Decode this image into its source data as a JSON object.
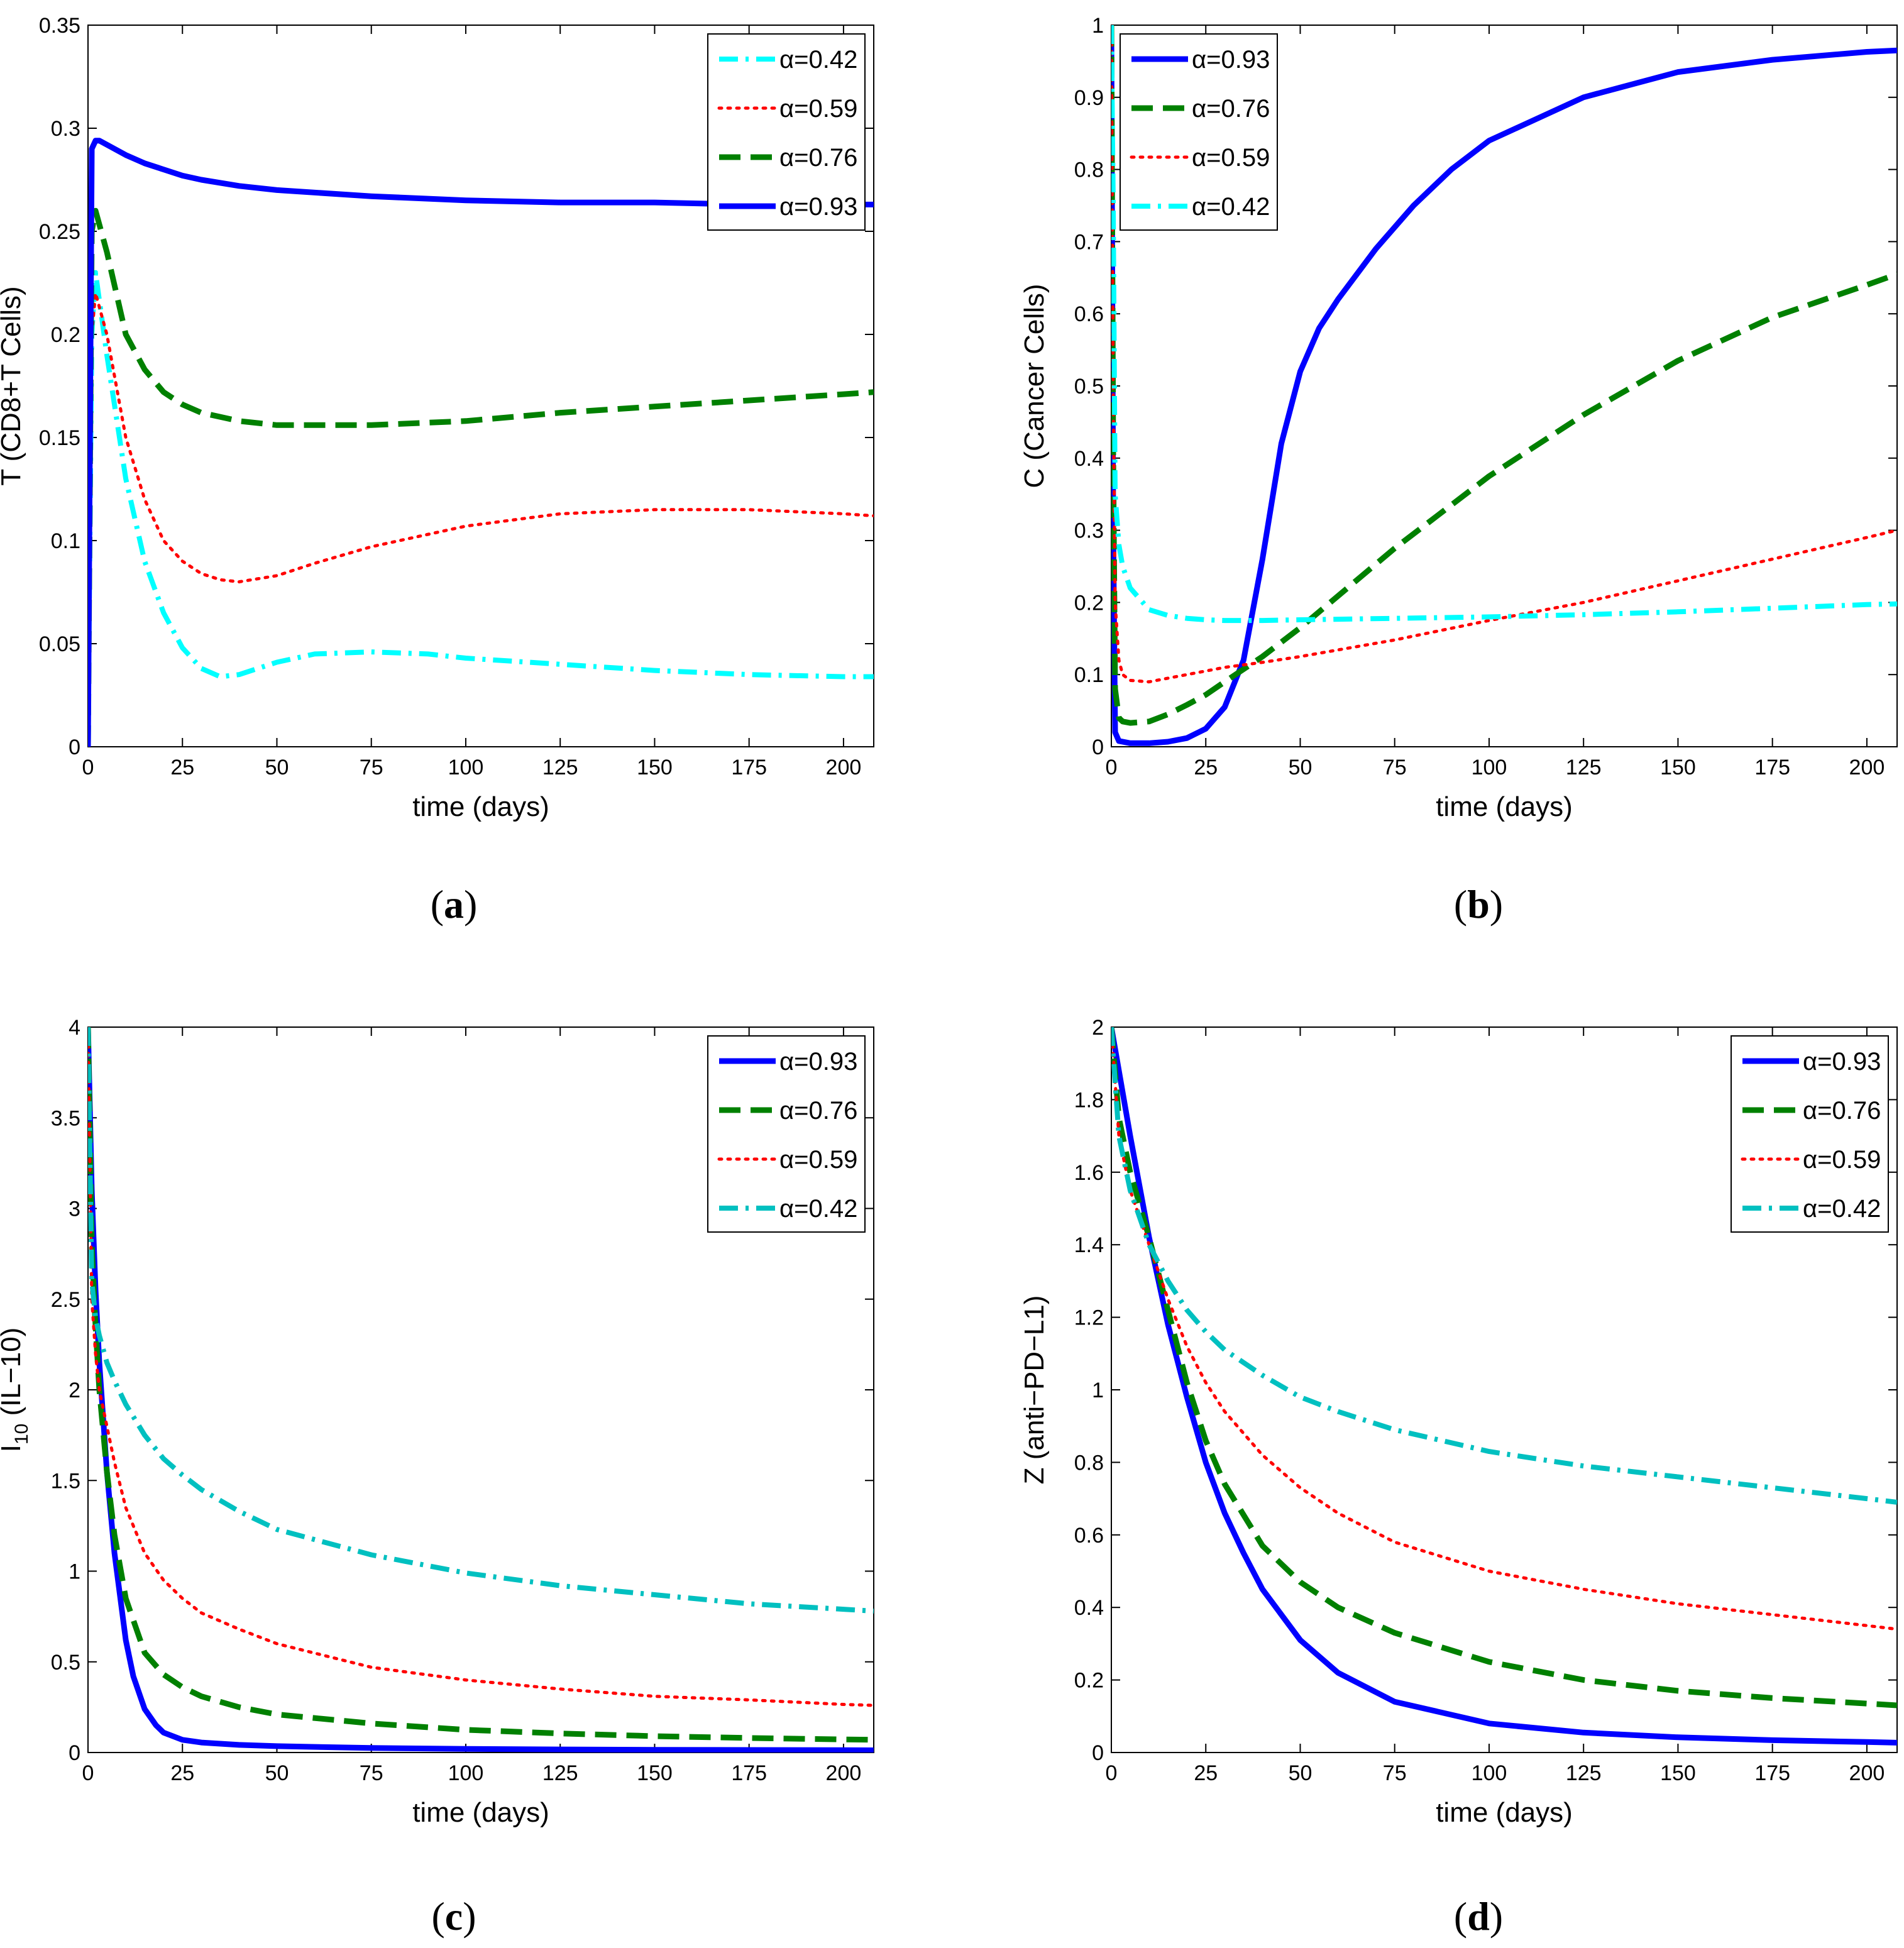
{
  "chart_data": [
    {
      "panel": "a",
      "type": "line",
      "caption": "(a)",
      "ylabel": "T (CD8+T Cells)",
      "xlabel": "time (days)",
      "xlim": [
        0,
        208
      ],
      "ylim": [
        0,
        0.35
      ],
      "xticks": [
        "0",
        "25",
        "50",
        "75",
        "100",
        "125",
        "150",
        "175",
        "200"
      ],
      "yticks": [
        "0",
        "0.05",
        "0.1",
        "0.15",
        "0.2",
        "0.25",
        "0.3",
        "0.35"
      ],
      "legend_position": "top-right",
      "series": [
        {
          "name": "α=0.42",
          "color": "#00ffff",
          "style": "dashdot",
          "x": [
            0,
            1,
            2,
            5,
            10,
            15,
            20,
            25,
            30,
            35,
            40,
            50,
            60,
            75,
            90,
            100,
            125,
            150,
            175,
            200,
            208
          ],
          "y": [
            0,
            0.2,
            0.23,
            0.19,
            0.13,
            0.09,
            0.065,
            0.048,
            0.038,
            0.034,
            0.035,
            0.041,
            0.045,
            0.046,
            0.045,
            0.043,
            0.04,
            0.037,
            0.035,
            0.034,
            0.034
          ]
        },
        {
          "name": "α=0.59",
          "color": "#ff0000",
          "style": "dotted",
          "x": [
            0,
            1,
            2,
            5,
            10,
            15,
            20,
            25,
            30,
            35,
            40,
            50,
            60,
            75,
            100,
            125,
            150,
            175,
            200,
            208
          ],
          "y": [
            0,
            0.2,
            0.22,
            0.2,
            0.15,
            0.12,
            0.1,
            0.09,
            0.084,
            0.081,
            0.08,
            0.083,
            0.089,
            0.097,
            0.107,
            0.113,
            0.115,
            0.115,
            0.113,
            0.112
          ]
        },
        {
          "name": "α=0.76",
          "color": "#008000",
          "style": "dashed",
          "x": [
            0,
            1,
            2,
            5,
            10,
            15,
            20,
            25,
            30,
            40,
            50,
            60,
            75,
            100,
            125,
            150,
            175,
            200,
            208
          ],
          "y": [
            0,
            0.25,
            0.26,
            0.24,
            0.2,
            0.183,
            0.172,
            0.166,
            0.162,
            0.158,
            0.156,
            0.156,
            0.156,
            0.158,
            0.162,
            0.165,
            0.168,
            0.171,
            0.172
          ]
        },
        {
          "name": "α=0.93",
          "color": "#0000ff",
          "style": "solid",
          "x": [
            0,
            1,
            2,
            3,
            5,
            10,
            15,
            20,
            25,
            30,
            40,
            50,
            75,
            100,
            125,
            150,
            175,
            200,
            208
          ],
          "y": [
            0,
            0.29,
            0.294,
            0.294,
            0.292,
            0.287,
            0.283,
            0.28,
            0.277,
            0.275,
            0.272,
            0.27,
            0.267,
            0.265,
            0.264,
            0.264,
            0.263,
            0.263,
            0.263
          ]
        }
      ]
    },
    {
      "panel": "b",
      "type": "line",
      "caption": "(b)",
      "ylabel": "C (Cancer Cells)",
      "xlabel": "time (days)",
      "xlim": [
        0,
        208
      ],
      "ylim": [
        0,
        1
      ],
      "xticks": [
        "0",
        "25",
        "50",
        "75",
        "100",
        "125",
        "150",
        "175",
        "200"
      ],
      "yticks": [
        "0",
        "0.1",
        "0.2",
        "0.3",
        "0.4",
        "0.5",
        "0.6",
        "0.7",
        "0.8",
        "0.9",
        "1"
      ],
      "legend_position": "top-left",
      "series": [
        {
          "name": "α=0.93",
          "color": "#0000ff",
          "style": "solid",
          "x": [
            0,
            0.5,
            1,
            2,
            5,
            10,
            15,
            20,
            25,
            30,
            35,
            40,
            45,
            50,
            55,
            60,
            70,
            80,
            90,
            100,
            125,
            150,
            175,
            200,
            208
          ],
          "y": [
            1,
            0.3,
            0.02,
            0.008,
            0.005,
            0.005,
            0.007,
            0.012,
            0.025,
            0.055,
            0.12,
            0.26,
            0.42,
            0.52,
            0.58,
            0.62,
            0.69,
            0.75,
            0.8,
            0.84,
            0.9,
            0.935,
            0.952,
            0.963,
            0.965
          ]
        },
        {
          "name": "α=0.76",
          "color": "#008000",
          "style": "dashed",
          "x": [
            0,
            0.5,
            1,
            2,
            3,
            5,
            10,
            15,
            20,
            25,
            30,
            40,
            50,
            75,
            100,
            125,
            150,
            175,
            200,
            208
          ],
          "y": [
            1,
            0.4,
            0.08,
            0.04,
            0.035,
            0.033,
            0.035,
            0.045,
            0.058,
            0.072,
            0.09,
            0.125,
            0.165,
            0.275,
            0.375,
            0.46,
            0.535,
            0.595,
            0.64,
            0.655
          ]
        },
        {
          "name": "α=0.59",
          "color": "#ff0000",
          "style": "dotted",
          "x": [
            0,
            0.5,
            1,
            2,
            3,
            5,
            10,
            15,
            20,
            25,
            30,
            40,
            50,
            75,
            100,
            125,
            150,
            175,
            200,
            208
          ],
          "y": [
            1,
            0.5,
            0.2,
            0.12,
            0.1,
            0.092,
            0.09,
            0.095,
            0.1,
            0.105,
            0.11,
            0.117,
            0.125,
            0.148,
            0.175,
            0.2,
            0.23,
            0.26,
            0.29,
            0.3
          ]
        },
        {
          "name": "α=0.42",
          "color": "#00ffff",
          "style": "dashdot",
          "x": [
            0,
            0.5,
            1,
            2,
            3,
            5,
            10,
            15,
            20,
            25,
            30,
            40,
            50,
            75,
            100,
            125,
            150,
            175,
            200,
            208
          ],
          "y": [
            1,
            0.75,
            0.35,
            0.28,
            0.25,
            0.22,
            0.19,
            0.182,
            0.178,
            0.176,
            0.175,
            0.175,
            0.176,
            0.178,
            0.18,
            0.183,
            0.187,
            0.192,
            0.197,
            0.198
          ]
        }
      ]
    },
    {
      "panel": "c",
      "type": "line",
      "caption": "(c)",
      "ylabel": "I",
      "ylabel_sub": "10",
      "ylabel_suffix": " (IL−10)",
      "xlabel": "time (days)",
      "xlim": [
        0,
        208
      ],
      "ylim": [
        0,
        4
      ],
      "xticks": [
        "0",
        "25",
        "50",
        "75",
        "100",
        "125",
        "150",
        "175",
        "200"
      ],
      "yticks": [
        "0",
        "0.5",
        "1",
        "1.5",
        "2",
        "2.5",
        "3",
        "3.5",
        "4"
      ],
      "legend_position": "top-right",
      "series": [
        {
          "name": "α=0.93",
          "color": "#0000ff",
          "style": "solid",
          "x": [
            0,
            1,
            2,
            3,
            5,
            7,
            10,
            12,
            15,
            18,
            20,
            25,
            30,
            40,
            50,
            75,
            100,
            125,
            150,
            175,
            200,
            208
          ],
          "y": [
            4,
            3.1,
            2.55,
            2.15,
            1.55,
            1.1,
            0.62,
            0.42,
            0.24,
            0.15,
            0.11,
            0.07,
            0.055,
            0.042,
            0.035,
            0.025,
            0.02,
            0.017,
            0.015,
            0.014,
            0.013,
            0.012
          ]
        },
        {
          "name": "α=0.76",
          "color": "#008000",
          "style": "dashed",
          "x": [
            0,
            1,
            2,
            3,
            5,
            7,
            10,
            15,
            20,
            25,
            30,
            40,
            50,
            75,
            100,
            125,
            150,
            175,
            200,
            208
          ],
          "y": [
            4,
            2.8,
            2.35,
            2.0,
            1.55,
            1.2,
            0.85,
            0.55,
            0.43,
            0.36,
            0.31,
            0.25,
            0.21,
            0.16,
            0.125,
            0.105,
            0.09,
            0.08,
            0.072,
            0.07
          ]
        },
        {
          "name": "α=0.59",
          "color": "#ff0000",
          "style": "dotted",
          "x": [
            0,
            1,
            2,
            3,
            5,
            7,
            10,
            15,
            20,
            25,
            30,
            40,
            50,
            75,
            100,
            125,
            150,
            175,
            200,
            208
          ],
          "y": [
            4,
            2.5,
            2.2,
            2.0,
            1.8,
            1.6,
            1.35,
            1.1,
            0.95,
            0.85,
            0.77,
            0.68,
            0.6,
            0.47,
            0.4,
            0.35,
            0.31,
            0.29,
            0.265,
            0.26
          ]
        },
        {
          "name": "α=0.42",
          "color": "#00c0c0",
          "style": "dashdot",
          "x": [
            0,
            1,
            2,
            3,
            5,
            7,
            10,
            15,
            20,
            25,
            30,
            40,
            50,
            75,
            100,
            125,
            150,
            175,
            200,
            208
          ],
          "y": [
            4,
            2.6,
            2.4,
            2.3,
            2.15,
            2.05,
            1.92,
            1.75,
            1.62,
            1.53,
            1.45,
            1.33,
            1.23,
            1.09,
            0.99,
            0.92,
            0.87,
            0.82,
            0.79,
            0.78
          ]
        }
      ]
    },
    {
      "panel": "d",
      "type": "line",
      "caption": "(d)",
      "ylabel": "Z (anti−PD−L1)",
      "xlabel": "time (days)",
      "xlim": [
        0,
        208
      ],
      "ylim": [
        0,
        2
      ],
      "xticks": [
        "0",
        "25",
        "50",
        "75",
        "100",
        "125",
        "150",
        "175",
        "200"
      ],
      "yticks": [
        "0",
        "0.2",
        "0.4",
        "0.6",
        "0.8",
        "1",
        "1.2",
        "1.4",
        "1.6",
        "1.8",
        "2"
      ],
      "legend_position": "top-right",
      "series": [
        {
          "name": "α=0.93",
          "color": "#0000ff",
          "style": "solid",
          "x": [
            0,
            5,
            10,
            15,
            20,
            25,
            30,
            35,
            40,
            50,
            60,
            75,
            100,
            125,
            150,
            175,
            200,
            208
          ],
          "y": [
            2,
            1.7,
            1.42,
            1.18,
            0.98,
            0.8,
            0.66,
            0.55,
            0.45,
            0.31,
            0.22,
            0.14,
            0.08,
            0.055,
            0.042,
            0.034,
            0.029,
            0.027
          ]
        },
        {
          "name": "α=0.76",
          "color": "#008000",
          "style": "dashed",
          "x": [
            0,
            2,
            5,
            10,
            15,
            20,
            25,
            30,
            40,
            50,
            60,
            75,
            100,
            125,
            150,
            175,
            200,
            208
          ],
          "y": [
            2,
            1.75,
            1.6,
            1.42,
            1.22,
            1.02,
            0.86,
            0.74,
            0.57,
            0.47,
            0.4,
            0.33,
            0.25,
            0.2,
            0.17,
            0.15,
            0.135,
            0.13
          ]
        },
        {
          "name": "α=0.59",
          "color": "#ff0000",
          "style": "dotted",
          "x": [
            0,
            2,
            5,
            10,
            15,
            20,
            25,
            30,
            40,
            50,
            60,
            75,
            100,
            125,
            150,
            175,
            200,
            208
          ],
          "y": [
            2,
            1.7,
            1.55,
            1.4,
            1.25,
            1.12,
            1.02,
            0.94,
            0.82,
            0.73,
            0.66,
            0.58,
            0.5,
            0.45,
            0.41,
            0.38,
            0.35,
            0.34
          ]
        },
        {
          "name": "α=0.42",
          "color": "#00c0c0",
          "style": "dashdot",
          "x": [
            0,
            2,
            5,
            10,
            15,
            20,
            25,
            30,
            40,
            50,
            60,
            75,
            100,
            125,
            150,
            175,
            200,
            208
          ],
          "y": [
            2,
            1.7,
            1.55,
            1.4,
            1.3,
            1.22,
            1.16,
            1.11,
            1.04,
            0.98,
            0.94,
            0.89,
            0.83,
            0.79,
            0.76,
            0.73,
            0.7,
            0.69
          ]
        }
      ]
    }
  ]
}
